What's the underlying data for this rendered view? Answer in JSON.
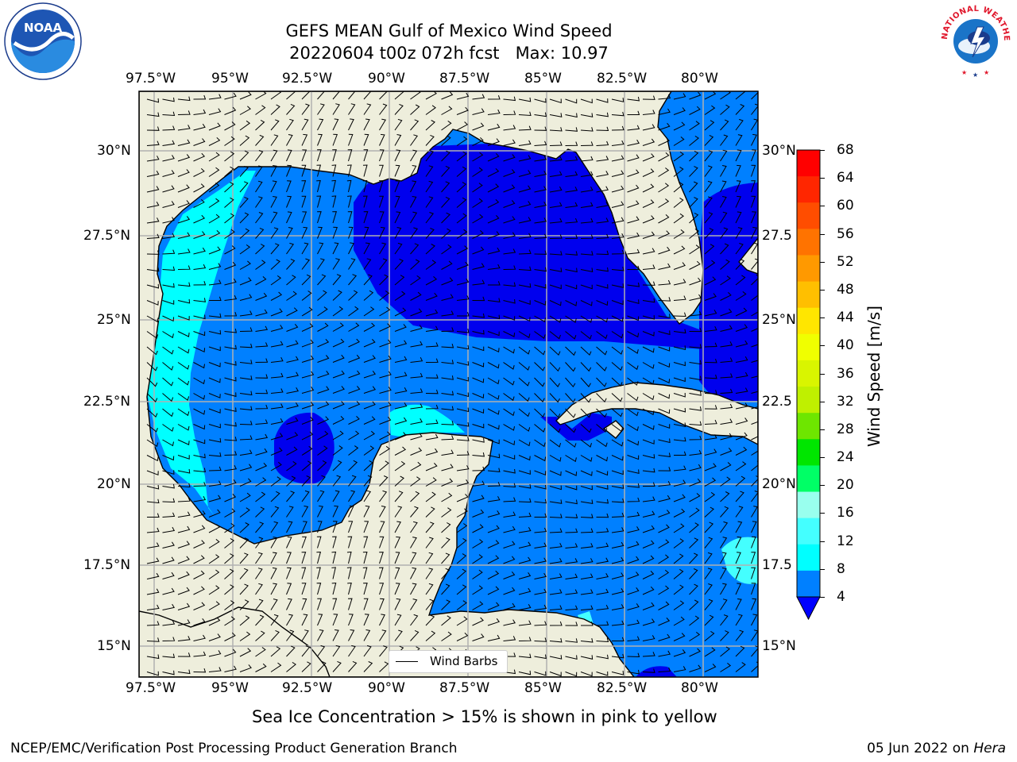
{
  "title": {
    "line1": "GEFS MEAN Gulf of Mexico Wind Speed",
    "line2": "20220604 t00z 072h fcst   Max: 10.97"
  },
  "lon_ticks": [
    "97.5°W",
    "95°W",
    "92.5°W",
    "90°W",
    "87.5°W",
    "85°W",
    "82.5°W",
    "80°W"
  ],
  "lat_ticks_left": [
    "30°N",
    "27.5°N",
    "25°N",
    "22.5°N",
    "20°N",
    "17.5°N",
    "15°N"
  ],
  "lat_ticks_right": [
    "30°N",
    "27.5",
    "25°N",
    "22.5",
    "20°N",
    "17.5",
    "15°N"
  ],
  "legend": {
    "label": "Wind Barbs"
  },
  "colorbar": {
    "label": "Wind Speed [m/s]",
    "ticks": [
      "68",
      "64",
      "60",
      "56",
      "52",
      "48",
      "44",
      "40",
      "36",
      "32",
      "28",
      "24",
      "20",
      "16",
      "12",
      "8",
      "4"
    ],
    "colors": [
      "#ff0000",
      "#ff2600",
      "#ff4d00",
      "#ff7300",
      "#ff9900",
      "#ffbf00",
      "#ffe600",
      "#f0ff00",
      "#d9f500",
      "#bff000",
      "#6ee600",
      "#00e600",
      "#00ff66",
      "#99ffee",
      "#44ffff",
      "#00ffff",
      "#0080ff"
    ],
    "extend_color": "#0000ff"
  },
  "note": "Sea Ice Concentration > 15% is shown in pink to yellow",
  "footer": {
    "left": "NCEP/EMC/Verification Post Processing Product Generation Branch",
    "date": "05 Jun 2022 on ",
    "machine": "Hera"
  },
  "logos": {
    "left": "NOAA",
    "right": "NATIONAL WEATHER SERVICE"
  }
}
